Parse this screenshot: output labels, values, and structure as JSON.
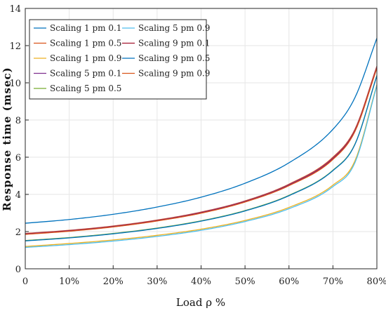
{
  "chart_data": {
    "type": "line",
    "xlabel": "Load ρ %",
    "ylabel": "Response time (msec)",
    "xlim": [
      0,
      80
    ],
    "ylim": [
      0,
      14
    ],
    "xticks": [
      0,
      10,
      20,
      30,
      40,
      50,
      60,
      70,
      80
    ],
    "xtick_labels": [
      "0",
      "10%",
      "20%",
      "30%",
      "40%",
      "50%",
      "60%",
      "70%",
      "80%"
    ],
    "yticks": [
      0,
      2,
      4,
      6,
      8,
      10,
      12,
      14
    ],
    "ytick_labels": [
      "0",
      "2",
      "4",
      "6",
      "8",
      "10",
      "12",
      "14"
    ],
    "grid": true,
    "legend_position": "top-left",
    "x": [
      0,
      10,
      20,
      30,
      40,
      50,
      60,
      70,
      75,
      80
    ],
    "series": [
      {
        "name": "Scaling 1 pm 0.1",
        "color": "#0072bd",
        "values": [
          2.45,
          2.65,
          2.93,
          3.32,
          3.85,
          4.6,
          5.7,
          7.5,
          9.2,
          12.4
        ]
      },
      {
        "name": "Scaling 1 pm 0.5",
        "color": "#d95319",
        "values": [
          1.9,
          2.07,
          2.3,
          2.62,
          3.05,
          3.65,
          4.55,
          6.0,
          7.5,
          10.9
        ]
      },
      {
        "name": "Scaling 1 pm 0.9",
        "color": "#edb120",
        "values": [
          1.2,
          1.36,
          1.55,
          1.8,
          2.13,
          2.6,
          3.3,
          4.5,
          5.8,
          9.9
        ]
      },
      {
        "name": "Scaling 5 pm 0.1",
        "color": "#7e2f8e",
        "values": [
          1.88,
          2.05,
          2.28,
          2.6,
          3.03,
          3.63,
          4.52,
          5.95,
          7.45,
          10.85
        ]
      },
      {
        "name": "Scaling 5 pm 0.5",
        "color": "#77ac30",
        "values": [
          1.52,
          1.68,
          1.9,
          2.19,
          2.58,
          3.13,
          3.95,
          5.3,
          6.7,
          10.4
        ]
      },
      {
        "name": "Scaling 5 pm 0.9",
        "color": "#4dbeee",
        "values": [
          1.15,
          1.3,
          1.49,
          1.74,
          2.07,
          2.54,
          3.23,
          4.42,
          5.7,
          9.85
        ]
      },
      {
        "name": "Scaling 9 pm 0.1",
        "color": "#a2142f",
        "values": [
          1.86,
          2.03,
          2.26,
          2.58,
          3.0,
          3.6,
          4.48,
          5.9,
          7.4,
          10.8
        ]
      },
      {
        "name": "Scaling 9 pm 0.5",
        "color": "#0072bd",
        "values": [
          1.5,
          1.66,
          1.88,
          2.17,
          2.56,
          3.11,
          3.93,
          5.28,
          6.68,
          10.38
        ]
      },
      {
        "name": "Scaling 9 pm 0.9",
        "color": "#d95319",
        "values": [
          1.85,
          2.02,
          2.25,
          2.57,
          2.99,
          3.59,
          4.47,
          5.88,
          7.38,
          10.78
        ]
      }
    ]
  }
}
